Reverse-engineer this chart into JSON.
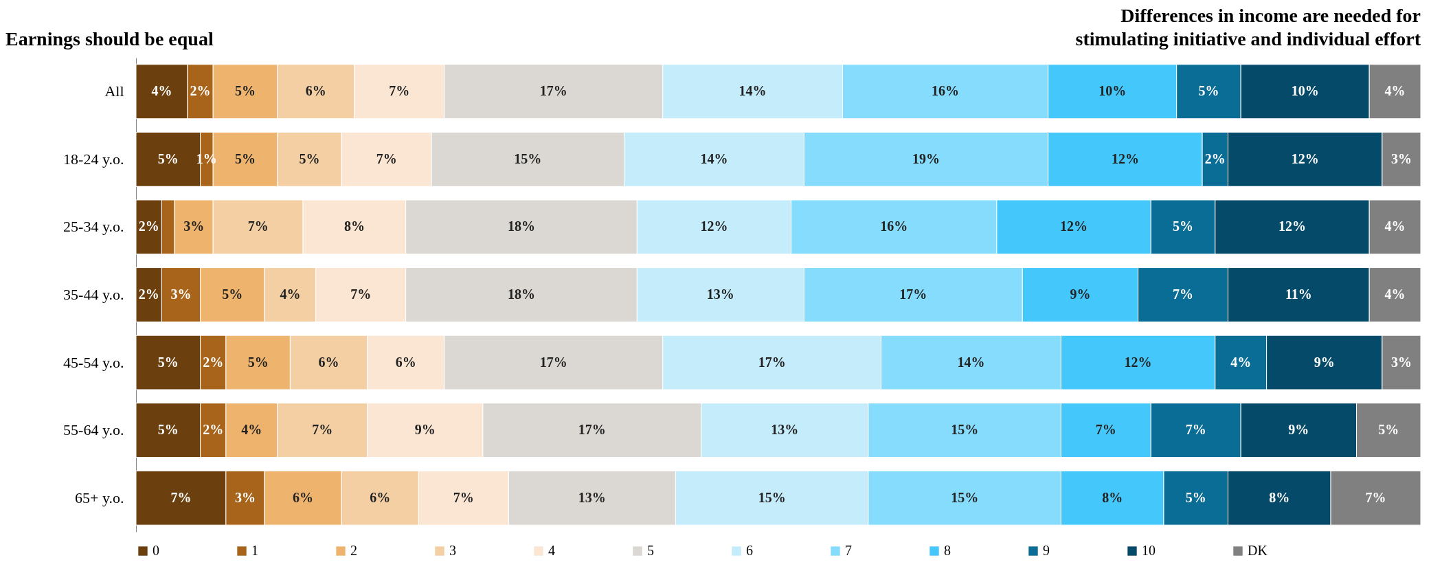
{
  "chart_data": {
    "type": "bar",
    "orientation": "horizontal",
    "stacked": true,
    "xlim": [
      0,
      100
    ],
    "tick_labels": "y",
    "grid": false,
    "legend": "bottom",
    "annotations": [
      "Earnings should be equal",
      "Differences in income are needed for\nstimulating initiative and individual effort"
    ],
    "categories": [
      "All",
      "18-24 y.o.",
      "25-34 y.o.",
      "35-44 y.o.",
      "45-54 y.o.",
      "55-64 y.o.",
      "65+ y.o."
    ],
    "series": [
      {
        "name": "0",
        "color": "#6b3f0e",
        "values": [
          4,
          5,
          2,
          2,
          5,
          5,
          7
        ],
        "value_labels": [
          "4%",
          "5%",
          "2%",
          "2%",
          "5%",
          "5%",
          "7%"
        ]
      },
      {
        "name": "1",
        "color": "#a8641a",
        "values": [
          2,
          1,
          1,
          3,
          2,
          2,
          3
        ],
        "value_labels": [
          "2%",
          "1%",
          null,
          "3%",
          "2%",
          "2%",
          "3%"
        ]
      },
      {
        "name": "2",
        "color": "#eeb46e",
        "values": [
          5,
          5,
          3,
          5,
          5,
          4,
          6
        ],
        "value_labels": [
          "5%",
          "5%",
          "3%",
          "5%",
          "5%",
          "4%",
          "6%"
        ]
      },
      {
        "name": "3",
        "color": "#f3cfa3",
        "values": [
          6,
          5,
          7,
          4,
          6,
          7,
          6
        ],
        "value_labels": [
          "6%",
          "5%",
          "7%",
          "4%",
          "6%",
          "7%",
          "6%"
        ]
      },
      {
        "name": "4",
        "color": "#fae6d2",
        "values": [
          7,
          7,
          8,
          7,
          6,
          9,
          7
        ],
        "value_labels": [
          "7%",
          "7%",
          "8%",
          "7%",
          "6%",
          "9%",
          "7%"
        ]
      },
      {
        "name": "5",
        "color": "#dbd7d2",
        "values": [
          17,
          15,
          18,
          18,
          17,
          17,
          13
        ],
        "value_labels": [
          "17%",
          "15%",
          "18%",
          "18%",
          "17%",
          "17%",
          "13%"
        ]
      },
      {
        "name": "6",
        "color": "#c4ecfb",
        "values": [
          14,
          14,
          12,
          13,
          17,
          13,
          15
        ],
        "value_labels": [
          "14%",
          "14%",
          "12%",
          "13%",
          "17%",
          "13%",
          "15%"
        ]
      },
      {
        "name": "7",
        "color": "#86dcfd",
        "values": [
          16,
          19,
          16,
          17,
          14,
          15,
          15
        ],
        "value_labels": [
          "16%",
          "19%",
          "16%",
          "17%",
          "14%",
          "15%",
          "15%"
        ]
      },
      {
        "name": "8",
        "color": "#44c8fb",
        "values": [
          10,
          12,
          12,
          9,
          12,
          7,
          8
        ],
        "value_labels": [
          "10%",
          "12%",
          "12%",
          "9%",
          "12%",
          "7%",
          "8%"
        ]
      },
      {
        "name": "9",
        "color": "#0a6d96",
        "values": [
          5,
          2,
          5,
          7,
          4,
          7,
          5
        ],
        "value_labels": [
          "5%",
          "2%",
          "5%",
          "7%",
          "4%",
          "7%",
          "5%"
        ]
      },
      {
        "name": "10",
        "color": "#064a69",
        "values": [
          10,
          12,
          12,
          11,
          9,
          9,
          8
        ],
        "value_labels": [
          "10%",
          "12%",
          "12%",
          "11%",
          "9%",
          "9%",
          "8%"
        ]
      },
      {
        "name": "DK",
        "color": "#808080",
        "values": [
          4,
          3,
          4,
          4,
          3,
          5,
          7
        ],
        "value_labels": [
          "4%",
          "3%",
          "4%",
          "4%",
          "3%",
          "5%",
          "7%"
        ]
      }
    ]
  }
}
